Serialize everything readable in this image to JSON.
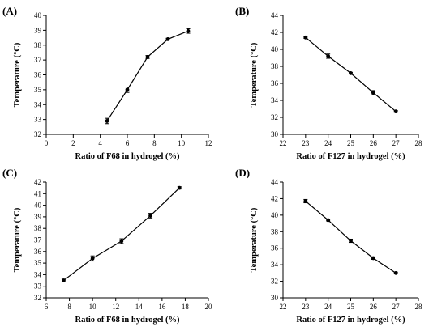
{
  "chart_data": [
    {
      "type": "line",
      "panel_label": "(A)",
      "xlabel": "Ratio of F68 in hydrogel (%)",
      "ylabel": "Temperature (°C)",
      "xlim": [
        0,
        12
      ],
      "ylim": [
        32,
        40
      ],
      "xticks": [
        0,
        2,
        4,
        6,
        8,
        10,
        12
      ],
      "yticks": [
        32,
        33,
        34,
        35,
        36,
        37,
        38,
        39,
        40
      ],
      "x": [
        4.5,
        6,
        7.5,
        9,
        10.5
      ],
      "y": [
        32.9,
        35.0,
        37.2,
        38.4,
        38.95
      ],
      "yerr": [
        0.18,
        0.18,
        0.1,
        0.06,
        0.15
      ],
      "grid": false
    },
    {
      "type": "line",
      "panel_label": "(B)",
      "xlabel": "Ratio of F127 in hydrogel (%)",
      "ylabel": "Temperature (°C)",
      "xlim": [
        22,
        28
      ],
      "ylim": [
        30,
        44
      ],
      "xticks": [
        22,
        23,
        24,
        25,
        26,
        27,
        28
      ],
      "yticks": [
        30,
        32,
        34,
        36,
        38,
        40,
        42,
        44
      ],
      "x": [
        23,
        24,
        25,
        26,
        27
      ],
      "y": [
        41.4,
        39.2,
        37.2,
        34.9,
        32.7
      ],
      "yerr": [
        0.1,
        0.25,
        0.1,
        0.25,
        0.1
      ],
      "grid": false
    },
    {
      "type": "line",
      "panel_label": "(C)",
      "xlabel": "Ratio of F68 in hydrogel (%)",
      "ylabel": "Temperature (°C)",
      "xlim": [
        6,
        20
      ],
      "ylim": [
        32,
        42
      ],
      "xticks": [
        6,
        8,
        10,
        12,
        14,
        16,
        18,
        20
      ],
      "yticks": [
        32,
        33,
        34,
        35,
        36,
        37,
        38,
        39,
        40,
        41,
        42
      ],
      "x": [
        7.5,
        10,
        12.5,
        15,
        17.5
      ],
      "y": [
        33.5,
        35.4,
        36.9,
        39.1,
        41.5
      ],
      "yerr": [
        0.12,
        0.22,
        0.2,
        0.2,
        0.1
      ],
      "grid": false
    },
    {
      "type": "line",
      "panel_label": "(D)",
      "xlabel": "Ratio of F127 in hydrogel (%)",
      "ylabel": "Temperature (°C)",
      "xlim": [
        22,
        28
      ],
      "ylim": [
        30,
        44
      ],
      "xticks": [
        22,
        23,
        24,
        25,
        26,
        27,
        28
      ],
      "yticks": [
        30,
        32,
        34,
        36,
        38,
        40,
        42,
        44
      ],
      "x": [
        23,
        24,
        25,
        26,
        27
      ],
      "y": [
        41.7,
        39.4,
        36.9,
        34.8,
        33.0
      ],
      "yerr": [
        0.2,
        0.1,
        0.2,
        0.15,
        0.1
      ],
      "grid": false
    }
  ]
}
